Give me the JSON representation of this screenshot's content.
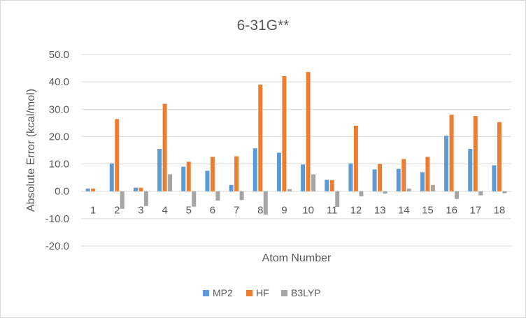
{
  "chart_data": {
    "type": "bar",
    "title": "6-31G**",
    "xlabel": "Atom Number",
    "ylabel": "Absolute Error (kcal/mol)",
    "ylim": [
      -20,
      50
    ],
    "yticks": [
      -20,
      -10,
      0,
      10,
      20,
      30,
      40,
      50
    ],
    "ytick_labels": [
      "-20.0",
      "-10.0",
      "0.0",
      "10.0",
      "20.0",
      "30.0",
      "40.0",
      "50.0"
    ],
    "grid": true,
    "legend_position": "bottom",
    "categories": [
      "1",
      "2",
      "3",
      "4",
      "5",
      "6",
      "7",
      "8",
      "9",
      "10",
      "11",
      "12",
      "13",
      "14",
      "15",
      "16",
      "17",
      "18"
    ],
    "series": [
      {
        "name": "MP2",
        "color": "#5b9bd5",
        "values": [
          1.0,
          10.2,
          1.3,
          15.5,
          9.0,
          7.5,
          2.3,
          15.7,
          14.1,
          9.8,
          4.2,
          10.2,
          8.0,
          8.2,
          7.0,
          20.3,
          15.5,
          9.5
        ]
      },
      {
        "name": "HF",
        "color": "#ed7d31",
        "values": [
          1.0,
          26.4,
          1.3,
          32.0,
          10.8,
          12.6,
          12.8,
          39.0,
          42.1,
          43.6,
          4.1,
          24.0,
          10.0,
          11.8,
          12.6,
          28.0,
          27.5,
          25.3
        ]
      },
      {
        "name": "B3LYP",
        "color": "#a5a5a5",
        "values": [
          0.0,
          -6.4,
          -5.4,
          6.2,
          -5.6,
          -3.4,
          -3.2,
          -8.5,
          0.8,
          6.2,
          -5.7,
          -1.8,
          -0.8,
          1.0,
          2.3,
          -2.8,
          -1.5,
          -0.7
        ]
      }
    ]
  }
}
